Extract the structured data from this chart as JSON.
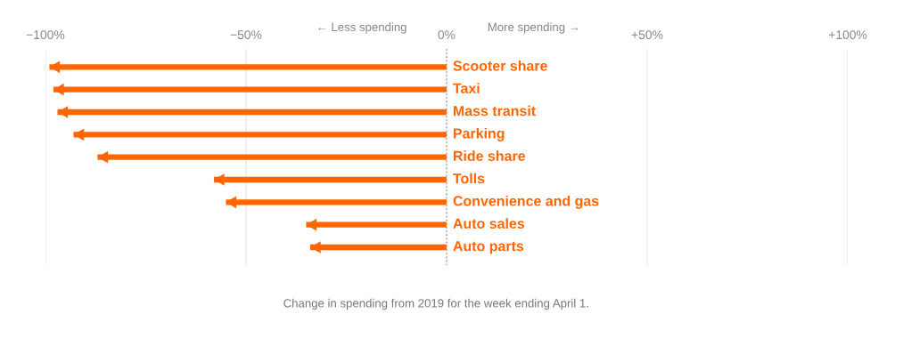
{
  "chart_data": {
    "type": "bar",
    "orientation": "horizontal",
    "categories": [
      "Scooter share",
      "Taxi",
      "Mass transit",
      "Parking",
      "Ride share",
      "Tolls",
      "Convenience and gas",
      "Auto sales",
      "Auto parts"
    ],
    "values": [
      -99,
      -98,
      -97,
      -93,
      -87,
      -58,
      -55,
      -35,
      -34
    ],
    "color": "#ff6600",
    "xlim": [
      -100,
      100
    ],
    "xticks": [
      {
        "value": -100,
        "label": "−100%"
      },
      {
        "value": -50,
        "label": "−50%"
      },
      {
        "value": 0,
        "label": "0%"
      },
      {
        "value": 50,
        "label": "+50%"
      },
      {
        "value": 100,
        "label": "+100%"
      }
    ],
    "grid": "x",
    "ref_lines": [
      {
        "axis": "x",
        "value": 0,
        "color": "#999999",
        "line_style": "dotted"
      }
    ],
    "annotations": [
      "← Less spending",
      "More spending →",
      "Change in spending from 2019 for the week ending April 1."
    ]
  }
}
